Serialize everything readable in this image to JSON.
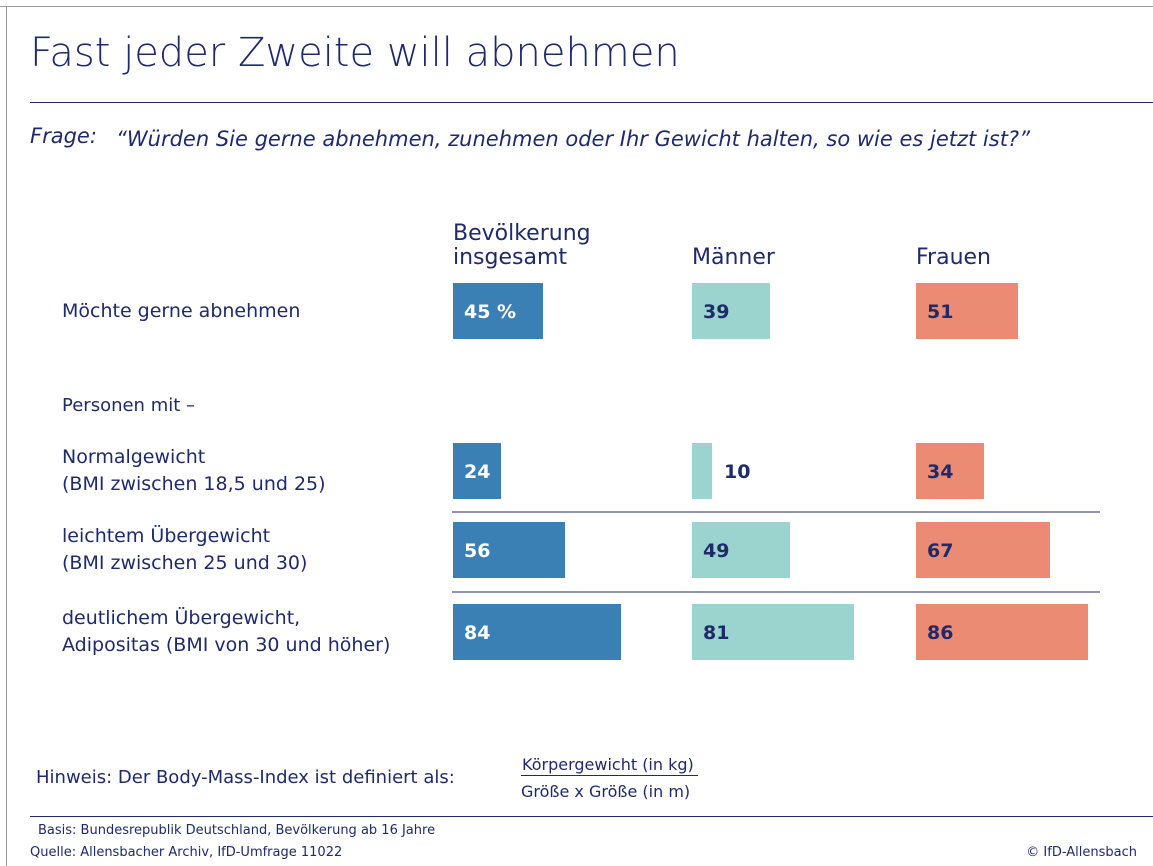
{
  "chart_data": {
    "type": "bar",
    "title": "Fast jeder Zweite will abnehmen",
    "question_label": "Frage:",
    "question": "“Würden Sie gerne abnehmen, zunehmen oder Ihr Gewicht halten, so wie es jetzt ist?”",
    "categories": [
      "Möchte gerne abnehmen",
      "Normalgewicht\n(BMI zwischen 18,5 und 25)",
      "leichtem Übergewicht\n(BMI zwischen 25 und 30)",
      "deutlichem Übergewicht,\nAdipositas (BMI von 30 und höher)"
    ],
    "group_label": "Personen mit –",
    "series": [
      {
        "name": "Bevölkerung insgesamt",
        "color": "#3b80b4",
        "values": [
          45,
          24,
          56,
          84
        ],
        "value_labels": [
          "45 %",
          "24",
          "56",
          "84"
        ]
      },
      {
        "name": "Männer",
        "color": "#9bd3cf",
        "values": [
          39,
          10,
          49,
          81
        ]
      },
      {
        "name": "Frauen",
        "color": "#ec8b74",
        "values": [
          51,
          34,
          67,
          86
        ]
      }
    ],
    "note": "Hinweis: Der Body-Mass-Index ist definiert als:",
    "note_numerator": "Körpergewicht (in kg)",
    "note_denominator": "Größe x Größe (in m)",
    "basis": "Basis: Bundesrepublik Deutschland, Bevölkerung ab 16 Jahre",
    "source": "Quelle: Allensbacher Archiv, IfD-Umfrage 11022",
    "copyright": "© IfD-Allensbach"
  }
}
